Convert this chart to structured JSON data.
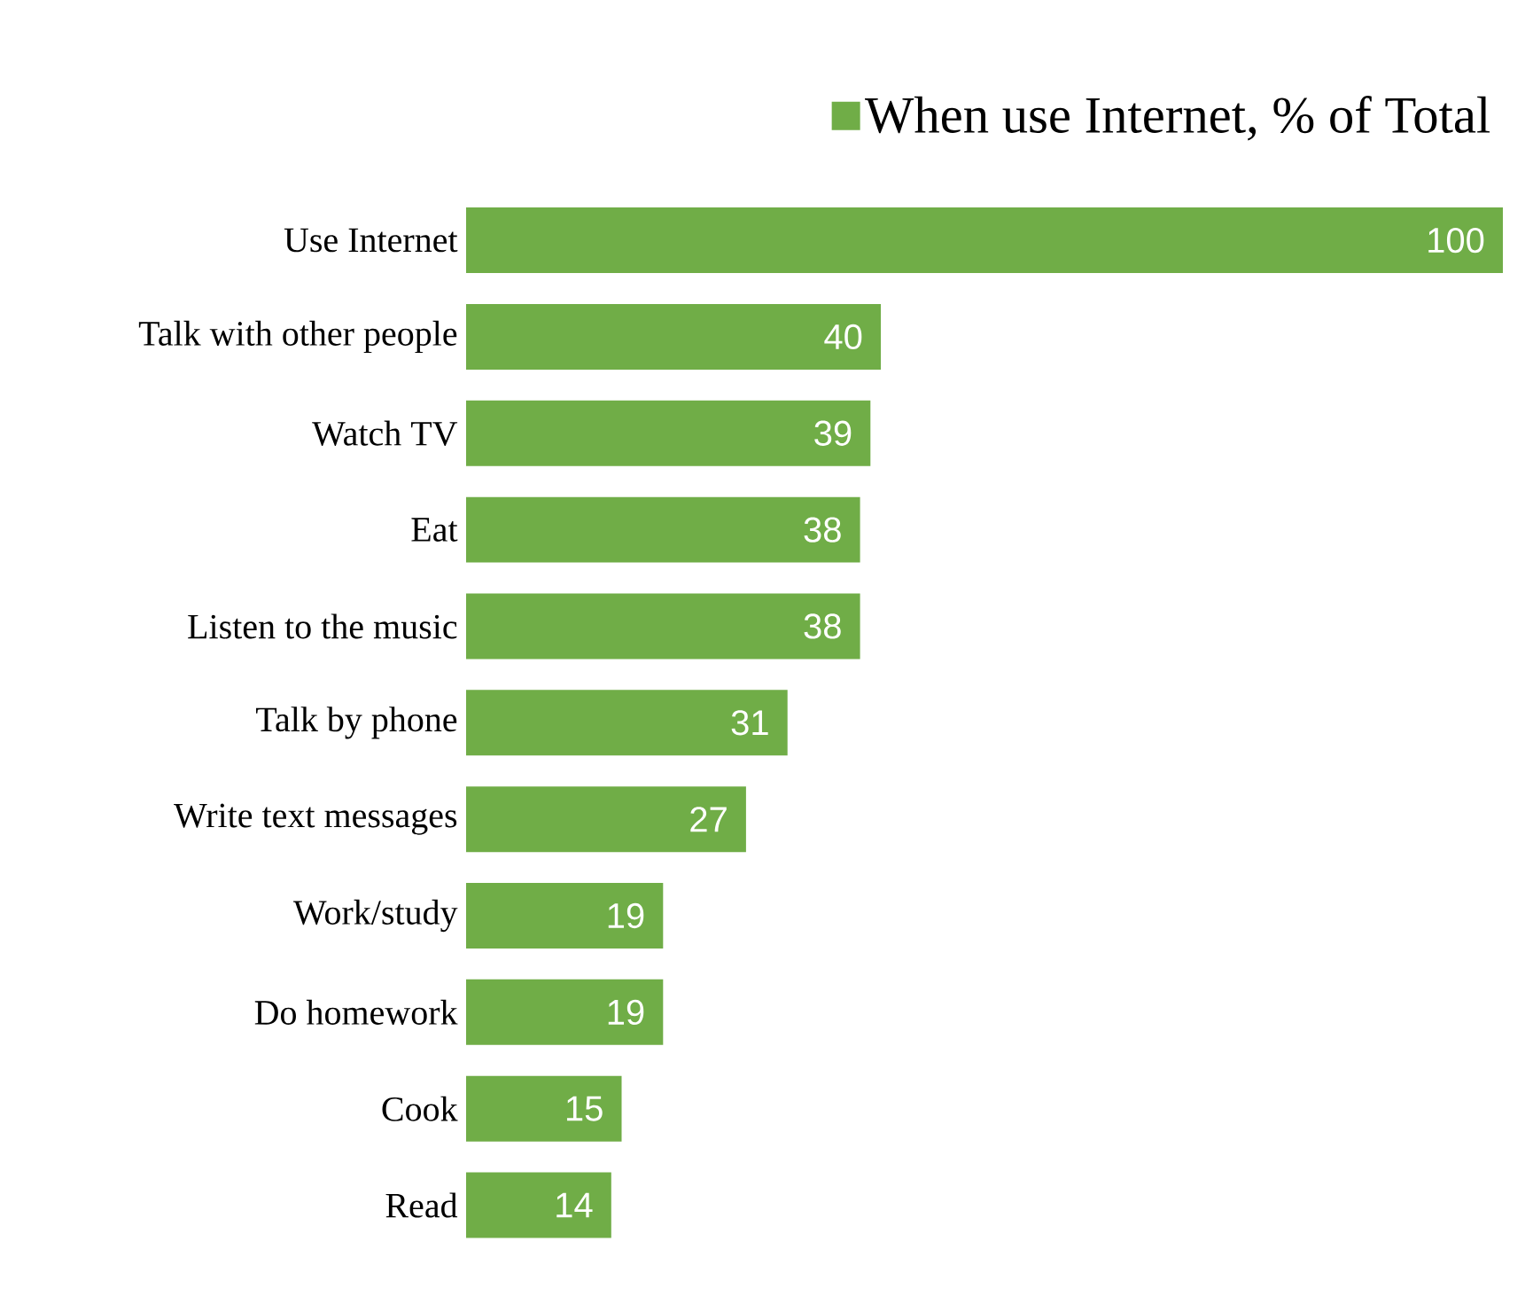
{
  "chart_data": {
    "type": "bar",
    "orientation": "horizontal",
    "categories": [
      "Use Internet",
      "Talk with other people",
      "Watch TV",
      "Eat",
      "Listen to the music",
      "Talk by phone",
      "Write text messages",
      "Work/study",
      "Do homework",
      "Cook",
      "Read"
    ],
    "series": [
      {
        "name": "When use Internet, % of Total",
        "color": "#70ad47",
        "values": [
          100,
          40,
          39,
          38,
          38,
          31,
          27,
          19,
          19,
          15,
          14
        ]
      }
    ],
    "data_labels": true,
    "legend": "top right"
  }
}
